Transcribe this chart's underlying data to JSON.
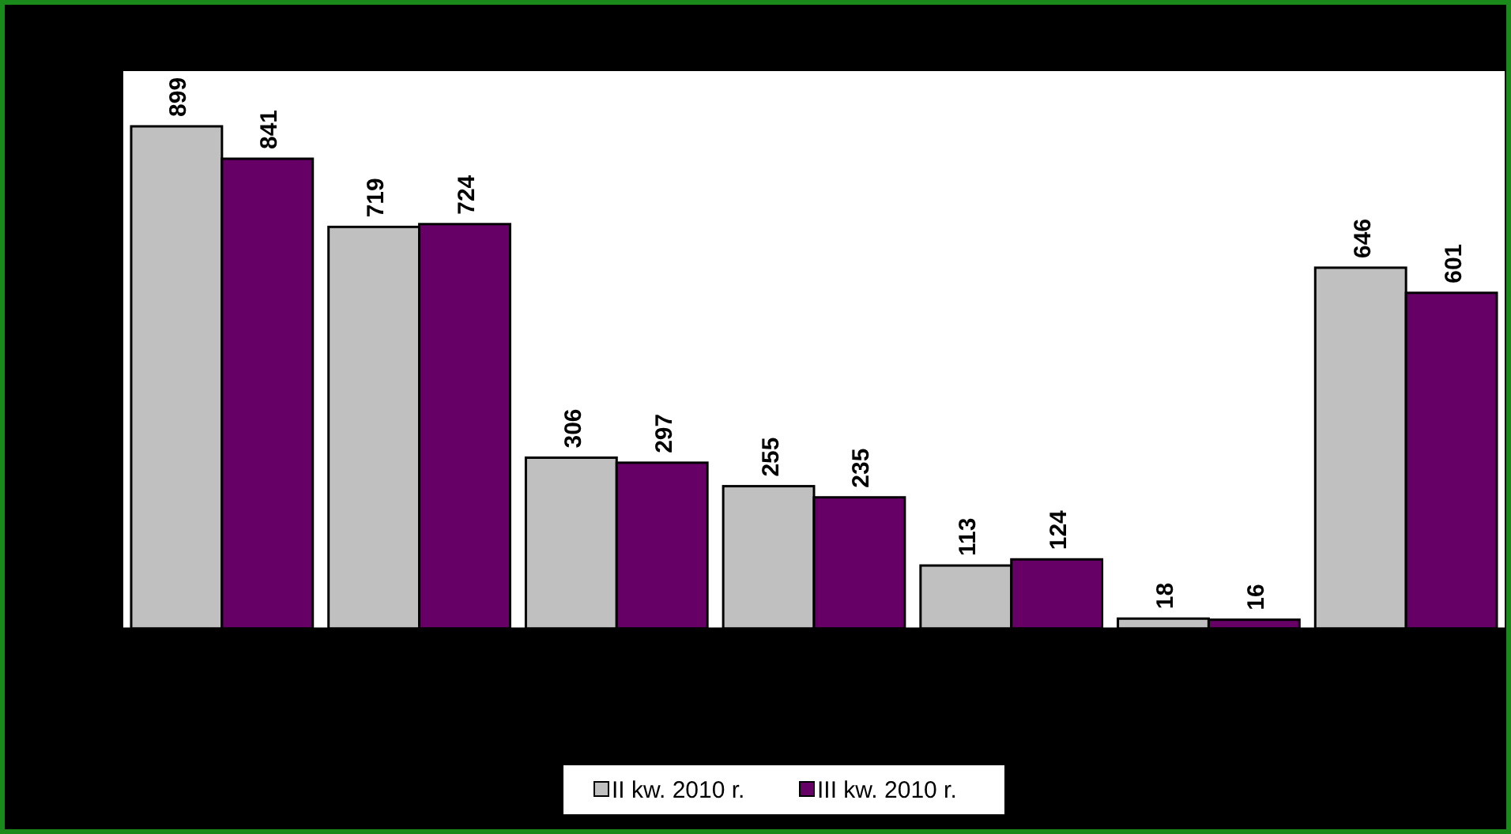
{
  "chart_data": {
    "type": "bar",
    "categories": [
      null,
      null,
      null,
      null,
      null,
      null,
      null
    ],
    "series": [
      {
        "name": "II kw. 2010 r.",
        "color": "#c0c0c0",
        "values": [
          899,
          719,
          306,
          255,
          113,
          18,
          646
        ]
      },
      {
        "name": "III kw. 2010 r.",
        "color": "#660066",
        "values": [
          841,
          724,
          297,
          235,
          124,
          16,
          601
        ]
      }
    ],
    "data_labels": true,
    "legend": "bottom",
    "grid": false
  }
}
